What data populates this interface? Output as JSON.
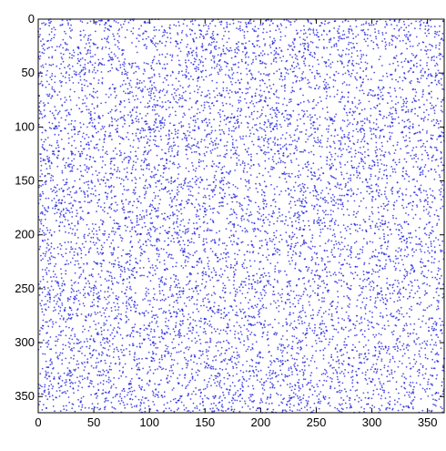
{
  "chart_data": {
    "type": "scatter",
    "title": "",
    "xlabel": "",
    "ylabel": "",
    "xlim": [
      0,
      365
    ],
    "ylim": [
      0,
      365
    ],
    "y_inverted": true,
    "grid": false,
    "legend": "none",
    "x_ticks": [
      0,
      50,
      100,
      150,
      200,
      250,
      300,
      350
    ],
    "y_ticks": [
      0,
      50,
      100,
      150,
      200,
      250,
      300,
      350
    ],
    "x_tick_labels": [
      "0",
      "50",
      "100",
      "150",
      "200",
      "250",
      "300",
      "350"
    ],
    "y_tick_labels": [
      "0",
      "50",
      "100",
      "150",
      "200",
      "250",
      "300",
      "350"
    ],
    "point_color": "#1a1adb",
    "point_distribution": "uniform random over the full axis range, about 9000 points",
    "point_count": 9000
  }
}
